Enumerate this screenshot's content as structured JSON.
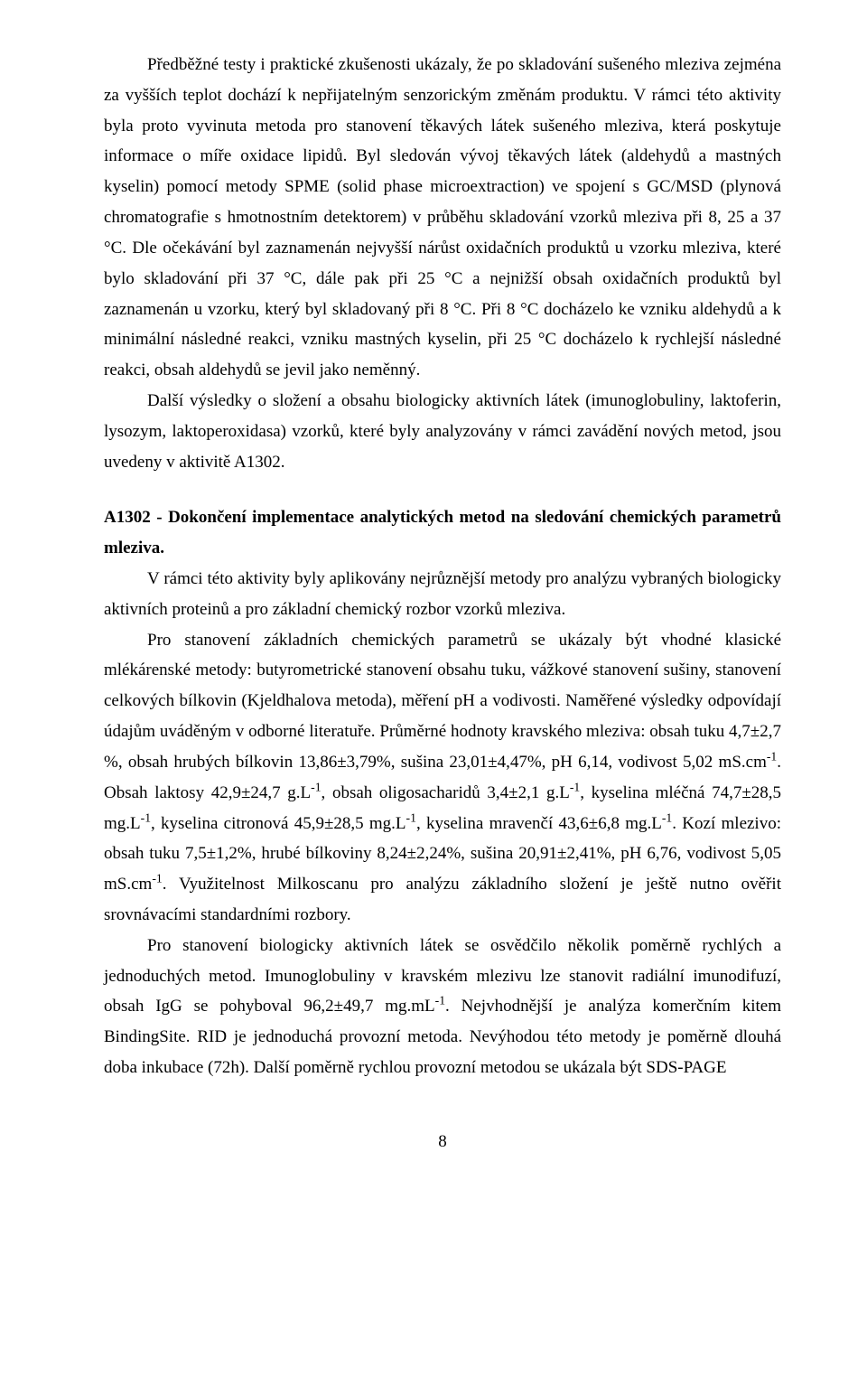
{
  "document": {
    "font_family": "Times New Roman",
    "font_size_pt": 12,
    "line_height": 1.78,
    "text_color": "#000000",
    "background_color": "#ffffff",
    "page_number": "8",
    "paragraphs": {
      "p1": "Předběžné testy i praktické zkušenosti ukázaly, že po skladování sušeného mleziva zejména za vyšších teplot dochází k nepřijatelným senzorickým změnám produktu. V rámci této aktivity byla proto vyvinuta metoda pro stanovení těkavých látek sušeného mleziva, která poskytuje informace o míře oxidace lipidů. Byl sledován vývoj těkavých látek (aldehydů a mastných kyselin) pomocí metody SPME (solid phase microextraction) ve spojení s GC/MSD (plynová chromatografie s hmotnostním detektorem) v průběhu skladování vzorků mleziva při 8, 25 a 37 °C. Dle očekávání byl zaznamenán nejvyšší nárůst oxidačních produktů u vzorku mleziva, které bylo skladování při 37 °C, dále pak při 25 °C a nejnižší obsah oxidačních produktů byl zaznamenán u vzorku, který byl skladovaný při 8 °C. Při 8 °C docházelo ke vzniku aldehydů a k minimální následné reakci, vzniku mastných kyselin, při 25 °C docházelo k rychlejší následné reakci, obsah aldehydů se jevil jako neměnný.",
      "p2": "Další výsledky o složení a obsahu biologicky aktivních látek (imunoglobuliny, laktoferin, lysozym, laktoperoxidasa) vzorků, které byly analyzovány v rámci zavádění nových metod, jsou uvedeny v aktivitě A1302.",
      "heading": "A1302 - Dokončení implementace analytických metod na sledování chemických parametrů mleziva.",
      "p3": "V rámci této aktivity byly aplikovány nejrůznější metody pro analýzu vybraných biologicky aktivních proteinů a pro základní chemický rozbor vzorků mleziva.",
      "p4_html": "Pro stanovení základních chemických parametrů se ukázaly být vhodné klasické mlékárenské metody: butyrometrické stanovení obsahu tuku, vážkové stanovení sušiny, stanovení celkových bílkovin (Kjeldhalova metoda), měření pH a vodivosti. Naměřené výsledky odpovídají údajům uváděným v odborné literatuře. Průměrné hodnoty kravského mleziva: obsah tuku 4,7±2,7 %, obsah hrubých bílkovin 13,86±3,79%, sušina 23,01±4,47%, pH 6,14, vodivost 5,02 mS.cm<sup>-1</sup>. Obsah laktosy 42,9±24,7 g.L<sup>-1</sup>, obsah oligosacharidů 3,4±2,1 g.L<sup>-1</sup>, kyselina mléčná 74,7±28,5 mg.L<sup>-1</sup>, kyselina citronová 45,9±28,5 mg.L<sup>-1</sup>, kyselina mravenčí 43,6±6,8 mg.L<sup>-1</sup>. Kozí mlezivo: obsah tuku 7,5±1,2%, hrubé bílkoviny 8,24±2,24%, sušina 20,91±2,41%, pH 6,76, vodivost 5,05 mS.cm<sup>-1</sup>. Využitelnost Milkoscanu pro analýzu základního složení je ještě nutno ověřit srovnávacími standardními rozbory.",
      "p5_html": "Pro stanovení biologicky aktivních látek se osvědčilo několik poměrně rychlých a jednoduchých metod. Imunoglobuliny v kravském mlezivu lze stanovit radiální imunodifuzí, obsah IgG se pohyboval 96,2±49,7 mg.mL<sup>-1</sup>. Nejvhodnější je analýza komerčním kitem BindingSite. RID je jednoduchá provozní metoda. Nevýhodou této metody je poměrně dlouhá doba inkubace (72h). Další poměrně rychlou provozní metodou se ukázala být SDS-PAGE"
    }
  }
}
